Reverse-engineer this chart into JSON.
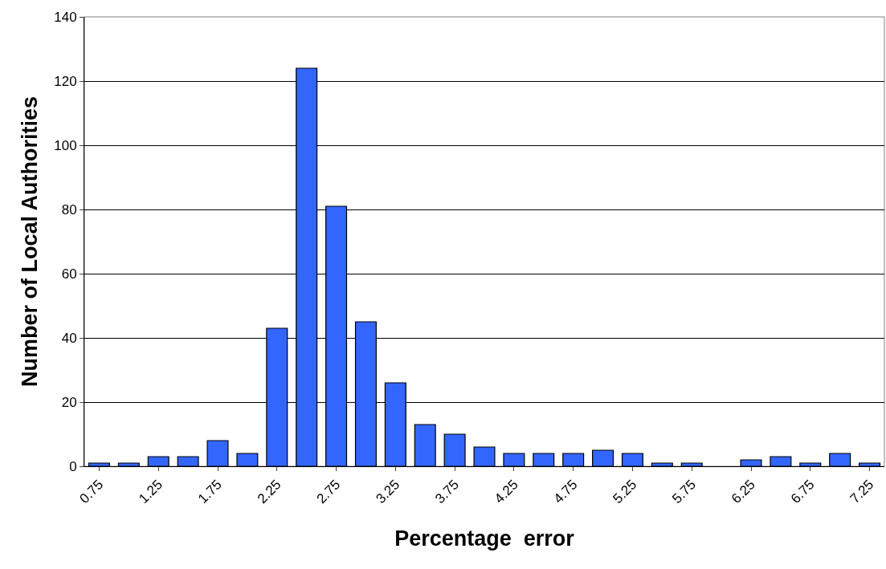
{
  "chart_data": {
    "type": "bar",
    "xlabel": "Percentage  error",
    "ylabel": "Number of Local Authorities",
    "categories": [
      "0.75",
      null,
      "1.25",
      null,
      "1.75",
      null,
      "2.25",
      null,
      "2.75",
      null,
      "3.25",
      null,
      "3.75",
      null,
      "4.25",
      null,
      "4.75",
      null,
      "5.25",
      null,
      "5.75",
      null,
      "6.25",
      null,
      "6.75",
      null,
      "7.25"
    ],
    "values": [
      1,
      1,
      3,
      3,
      8,
      4,
      43,
      124,
      81,
      45,
      26,
      13,
      10,
      6,
      4,
      4,
      4,
      5,
      4,
      1,
      1,
      0,
      2,
      3,
      1,
      4,
      1
    ],
    "color": "#3366ff",
    "ylim": [
      0,
      140
    ],
    "yticks": [
      0,
      20,
      40,
      60,
      80,
      100,
      120,
      140
    ],
    "grid": "y",
    "legend": false
  }
}
